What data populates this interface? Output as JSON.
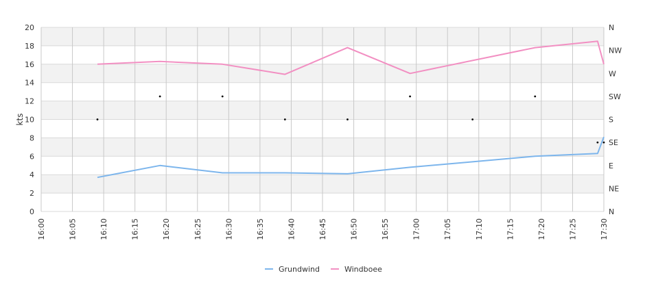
{
  "chart_data": {
    "type": "line",
    "xlabel": "",
    "ylabel": "kts",
    "ylim": [
      0,
      20
    ],
    "yticks": [
      0,
      2,
      4,
      6,
      8,
      10,
      12,
      14,
      16,
      18,
      20
    ],
    "xlim": [
      "16:00",
      "17:30"
    ],
    "xticks": [
      "16:00",
      "16:05",
      "16:10",
      "16:15",
      "16:20",
      "16:25",
      "16:30",
      "16:35",
      "16:40",
      "16:45",
      "16:50",
      "16:55",
      "17:00",
      "17:05",
      "17:10",
      "17:15",
      "17:20",
      "17:25",
      "17:30"
    ],
    "y2_labels": [
      "N",
      "NE",
      "E",
      "SE",
      "S",
      "SW",
      "W",
      "NW",
      "N"
    ],
    "grid": true,
    "legend_position": "bottom-center",
    "series": [
      {
        "name": "Grundwind",
        "color": "#7cb5ec",
        "points": [
          {
            "x": "16:09",
            "y": 3.7
          },
          {
            "x": "16:19",
            "y": 5.0
          },
          {
            "x": "16:29",
            "y": 4.2
          },
          {
            "x": "16:39",
            "y": 4.2
          },
          {
            "x": "16:49",
            "y": 4.1
          },
          {
            "x": "16:59",
            "y": 4.8
          },
          {
            "x": "17:09",
            "y": 5.4
          },
          {
            "x": "17:19",
            "y": 6.0
          },
          {
            "x": "17:29",
            "y": 6.3
          },
          {
            "x": "17:30",
            "y": 8.1
          }
        ]
      },
      {
        "name": "Windboee",
        "color": "#f28fc2",
        "points": [
          {
            "x": "16:09",
            "y": 16.0
          },
          {
            "x": "16:19",
            "y": 16.3
          },
          {
            "x": "16:29",
            "y": 16.0
          },
          {
            "x": "16:39",
            "y": 14.9
          },
          {
            "x": "16:49",
            "y": 17.8
          },
          {
            "x": "16:59",
            "y": 15.0
          },
          {
            "x": "17:09",
            "y": 16.4
          },
          {
            "x": "17:19",
            "y": 17.8
          },
          {
            "x": "17:29",
            "y": 18.5
          },
          {
            "x": "17:30",
            "y": 16.0
          }
        ]
      }
    ],
    "direction_series": {
      "color": "#000000",
      "points": [
        {
          "x": "16:09",
          "dir": "S"
        },
        {
          "x": "16:19",
          "dir": "SW"
        },
        {
          "x": "16:29",
          "dir": "SW"
        },
        {
          "x": "16:39",
          "dir": "S"
        },
        {
          "x": "16:49",
          "dir": "S"
        },
        {
          "x": "16:59",
          "dir": "SW"
        },
        {
          "x": "17:09",
          "dir": "S"
        },
        {
          "x": "17:19",
          "dir": "SW"
        },
        {
          "x": "17:29",
          "dir": "SE"
        },
        {
          "x": "17:30",
          "dir": "SE"
        }
      ]
    },
    "colors": {
      "band": "#f2f2f2",
      "gridline": "#d9d9d9",
      "vertical_gridline": "#c8c8c8",
      "text": "#333333"
    }
  }
}
